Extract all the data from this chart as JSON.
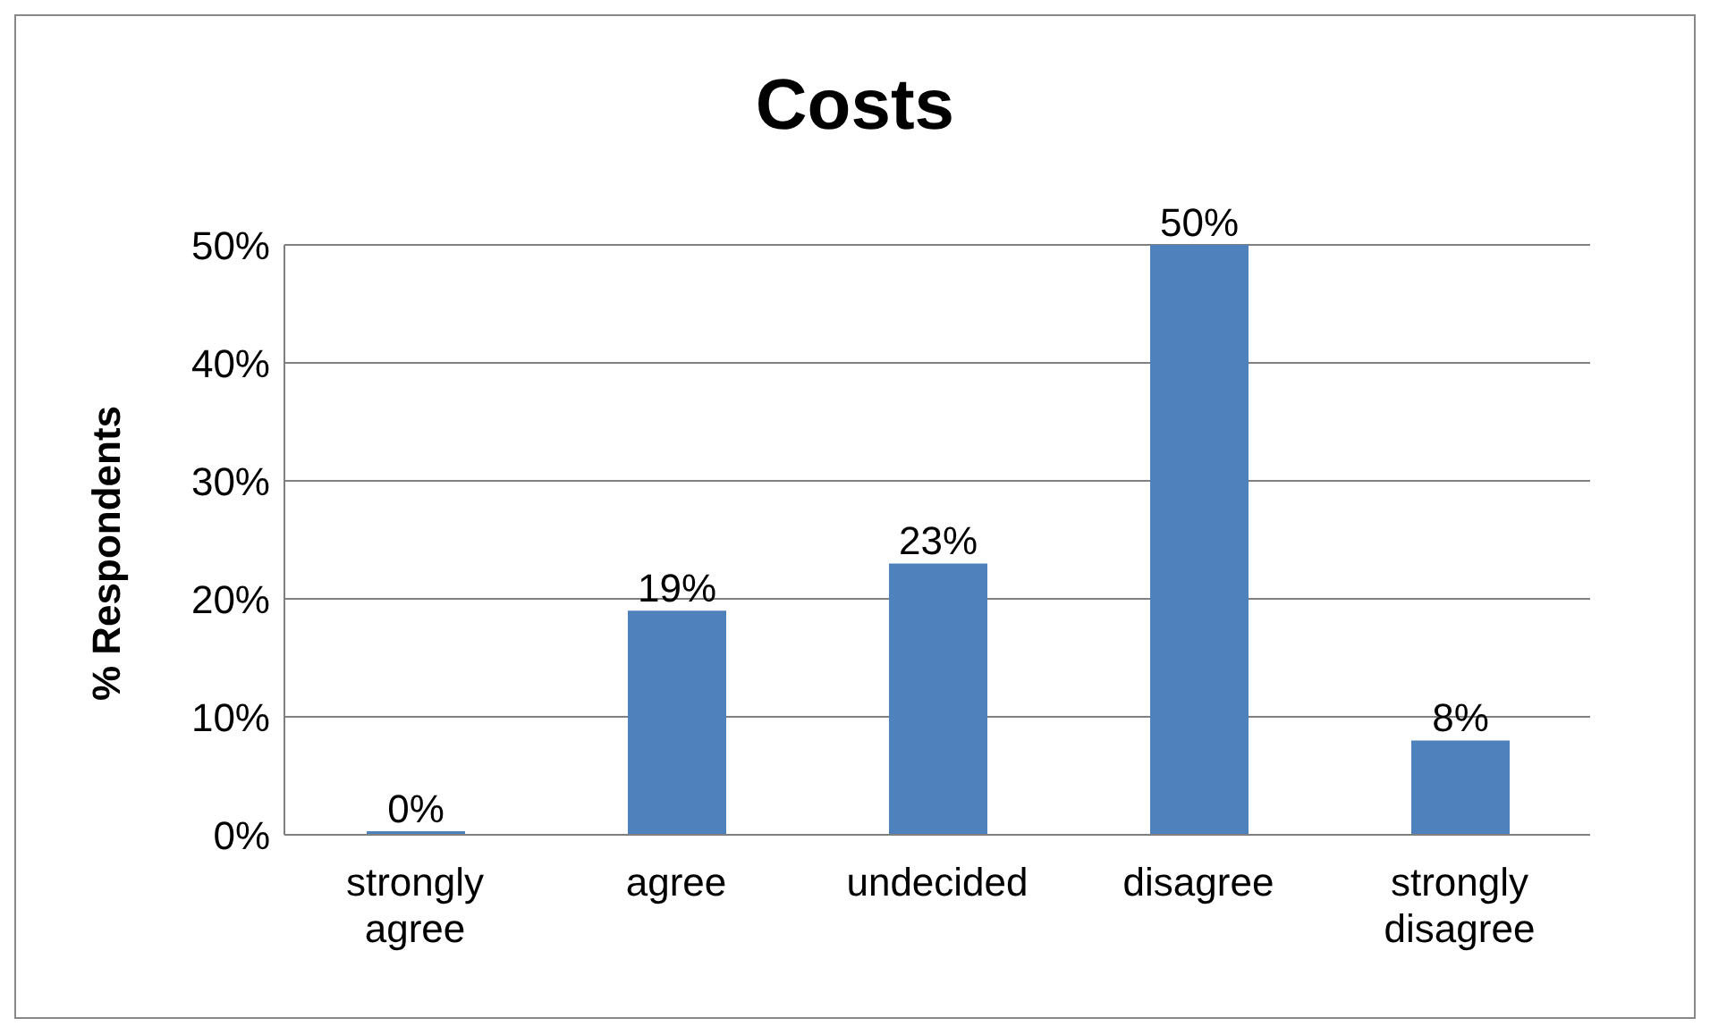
{
  "chart_data": {
    "type": "bar",
    "title": "Costs",
    "ylabel": "% Respondents",
    "categories": [
      "strongly agree",
      "agree",
      "undecided",
      "disagree",
      "strongly disagree"
    ],
    "values": [
      0,
      19,
      23,
      50,
      8
    ],
    "value_labels": [
      "0%",
      "19%",
      "23%",
      "50%",
      "8%"
    ],
    "color": "#4f81bd",
    "ylim": [
      0,
      50
    ],
    "yticks": [
      {
        "value": 0,
        "label": "0%"
      },
      {
        "value": 10,
        "label": "10%"
      },
      {
        "value": 20,
        "label": "20%"
      },
      {
        "value": 30,
        "label": "30%"
      },
      {
        "value": 40,
        "label": "40%"
      },
      {
        "value": 50,
        "label": "50%"
      }
    ],
    "grid": "y"
  }
}
